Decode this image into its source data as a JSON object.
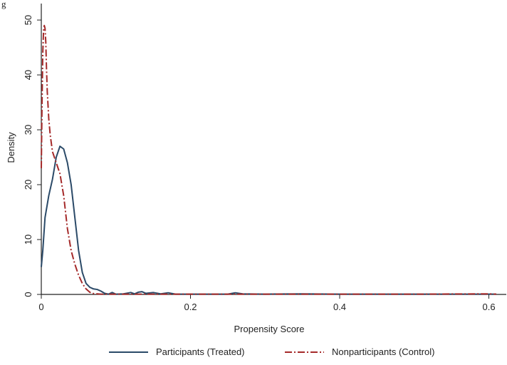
{
  "chart_data": {
    "type": "line",
    "title": "",
    "corner_text": "g",
    "xlabel": "Propensity Score",
    "ylabel": "Density",
    "xlim": [
      0,
      0.61
    ],
    "ylim": [
      0,
      53
    ],
    "x_ticks": [
      0,
      0.2,
      0.4,
      0.6
    ],
    "x_tick_labels": [
      "0",
      "0.2",
      "0.4",
      "0.6"
    ],
    "y_ticks": [
      0,
      10,
      20,
      30,
      40,
      50
    ],
    "y_tick_labels": [
      "0",
      "10",
      "20",
      "30",
      "40",
      "50"
    ],
    "grid": false,
    "legend_position": "bottom",
    "series": [
      {
        "name": "Participants (Treated)",
        "color": "#2b4a68",
        "dash": "solid",
        "points": [
          [
            0.0,
            5
          ],
          [
            0.002,
            8
          ],
          [
            0.005,
            14
          ],
          [
            0.01,
            18
          ],
          [
            0.015,
            21
          ],
          [
            0.02,
            25
          ],
          [
            0.025,
            27
          ],
          [
            0.03,
            26.5
          ],
          [
            0.035,
            24
          ],
          [
            0.04,
            20
          ],
          [
            0.045,
            14
          ],
          [
            0.05,
            8
          ],
          [
            0.055,
            4
          ],
          [
            0.06,
            2
          ],
          [
            0.065,
            1.3
          ],
          [
            0.07,
            1.0
          ],
          [
            0.075,
            0.9
          ],
          [
            0.08,
            0.6
          ],
          [
            0.085,
            0.2
          ],
          [
            0.09,
            0.05
          ],
          [
            0.095,
            0.35
          ],
          [
            0.1,
            0.05
          ],
          [
            0.11,
            0.1
          ],
          [
            0.12,
            0.35
          ],
          [
            0.125,
            0.1
          ],
          [
            0.13,
            0.4
          ],
          [
            0.135,
            0.5
          ],
          [
            0.14,
            0.2
          ],
          [
            0.15,
            0.35
          ],
          [
            0.16,
            0.1
          ],
          [
            0.17,
            0.3
          ],
          [
            0.18,
            0.05
          ],
          [
            0.2,
            0.05
          ],
          [
            0.25,
            0.05
          ],
          [
            0.26,
            0.3
          ],
          [
            0.27,
            0.1
          ],
          [
            0.3,
            0.05
          ],
          [
            0.35,
            0.1
          ],
          [
            0.4,
            0.05
          ],
          [
            0.45,
            0.05
          ],
          [
            0.5,
            0.05
          ],
          [
            0.55,
            0.05
          ],
          [
            0.6,
            0.05
          ],
          [
            0.61,
            0.05
          ]
        ]
      },
      {
        "name": "Nonparticipants (Control)",
        "color": "#a52a2a",
        "dash": "dashdot",
        "points": [
          [
            0.0,
            23
          ],
          [
            0.001,
            35
          ],
          [
            0.002,
            44
          ],
          [
            0.003,
            48
          ],
          [
            0.004,
            49
          ],
          [
            0.005,
            48.5
          ],
          [
            0.006,
            46
          ],
          [
            0.007,
            41
          ],
          [
            0.008,
            37
          ],
          [
            0.01,
            32
          ],
          [
            0.012,
            29
          ],
          [
            0.015,
            26
          ],
          [
            0.02,
            24
          ],
          [
            0.025,
            22
          ],
          [
            0.03,
            18
          ],
          [
            0.035,
            12
          ],
          [
            0.04,
            8
          ],
          [
            0.045,
            5.5
          ],
          [
            0.05,
            3.5
          ],
          [
            0.055,
            2
          ],
          [
            0.06,
            1.0
          ],
          [
            0.065,
            0.4
          ],
          [
            0.07,
            0.15
          ],
          [
            0.08,
            0.05
          ],
          [
            0.1,
            0.05
          ],
          [
            0.2,
            0.05
          ],
          [
            0.3,
            0.05
          ],
          [
            0.4,
            0.05
          ],
          [
            0.5,
            0.05
          ],
          [
            0.6,
            0.1
          ],
          [
            0.61,
            0.05
          ]
        ]
      }
    ]
  }
}
